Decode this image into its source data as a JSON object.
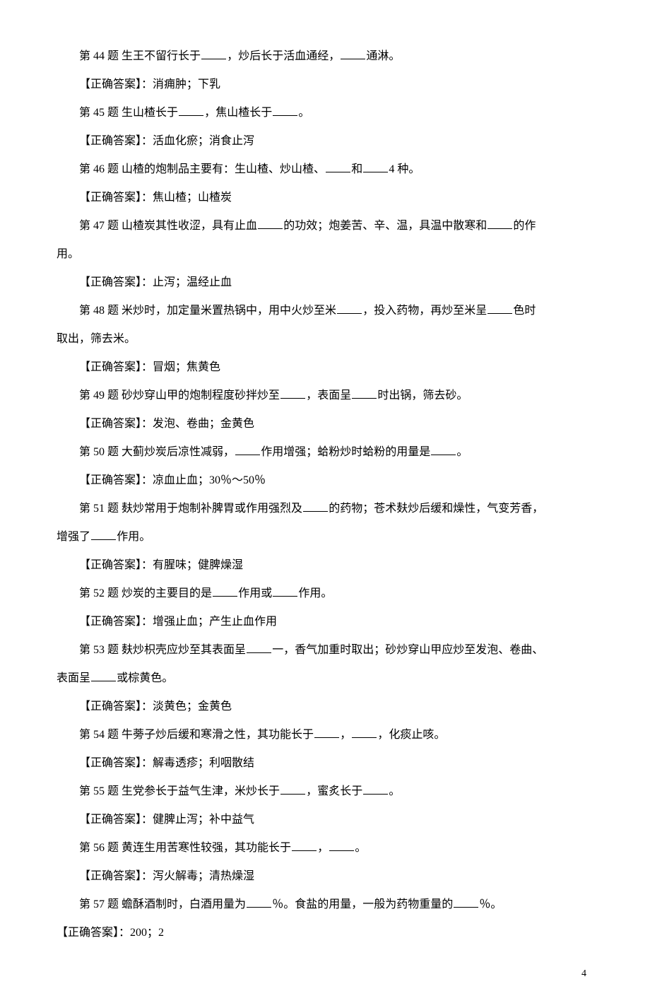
{
  "page_number": "4",
  "answer_label": "【正确答案】：",
  "items": [
    {
      "q_prefix": "第 44 题 生王不留行长于",
      "q_mid1": "，炒后长于活血通经，",
      "q_suffix": "通淋。",
      "a": "消痈肿；下乳"
    },
    {
      "q_prefix": "第 45 题 生山楂长于",
      "q_mid1": "，焦山楂长于",
      "q_suffix": "。",
      "a": "活血化瘀；消食止泻"
    },
    {
      "q_prefix": "第 46 题 山楂的炮制品主要有：生山楂、炒山楂、",
      "q_mid1": "和",
      "q_suffix": "4 种。",
      "a": "焦山楂；山楂炭"
    },
    {
      "q_prefix": "第 47 题 山楂炭其性收涩，具有止血",
      "q_mid1": "的功效；炮姜苦、辛、温，具温中散寒和",
      "q_suffix": "的作",
      "q_line2": "用。",
      "a": "止泻；温经止血"
    },
    {
      "q_prefix": "第 48 题 米炒时，加定量米置热锅中，用中火炒至米",
      "q_mid1": "，投入药物，再炒至米呈",
      "q_suffix": "色时",
      "q_line2": "取出，筛去米。",
      "a": "冒烟；焦黄色"
    },
    {
      "q_prefix": "第 49 题 砂炒穿山甲的炮制程度砂拌炒至",
      "q_mid1": "，表面呈",
      "q_suffix": "时出锅，筛去砂。",
      "a": "发泡、卷曲；金黄色"
    },
    {
      "q_prefix": "第 50 题 大蓟炒炭后凉性减弱，",
      "q_mid1": "作用增强；蛤粉炒时蛤粉的用量是",
      "q_suffix": "。",
      "a": "凉血止血；30％～50％"
    },
    {
      "q_prefix": "第 51 题 麸炒常用于炮制补脾胃或作用强烈及",
      "q_mid1": "的药物；苍术麸炒后缓和燥性，气变芳香，",
      "q_line2_prefix": "增强了",
      "q_line2_suffix": "作用。",
      "a": "有腥味；健脾燥湿"
    },
    {
      "q_prefix": "第 52 题 炒炭的主要目的是",
      "q_mid1": "作用或",
      "q_suffix": "作用。",
      "a": "增强止血；产生止血作用"
    },
    {
      "q_prefix": "第 53 题 麸炒枳壳应炒至其表面呈",
      "q_mid1": "一，香气加重时取出；砂炒穿山甲应炒至发泡、卷曲、",
      "q_line2_prefix": "表面呈",
      "q_line2_suffix": "或棕黄色。",
      "a": "淡黄色；金黄色"
    },
    {
      "q_prefix": "第 54 题 牛蒡子炒后缓和寒滑之性，其功能长于",
      "q_mid1": "，",
      "q_suffix": "，化痰止咳。",
      "a": "解毒透疹；利咽散结"
    },
    {
      "q_prefix": "第 55 题 生党参长于益气生津，米炒长于",
      "q_mid1": "，蜜炙长于",
      "q_suffix": "。",
      "a": "健脾止泻；补中益气"
    },
    {
      "q_prefix": "第 56 题 黄连生用苦寒性较强，其功能长于",
      "q_mid1": "，",
      "q_suffix": "。",
      "a": "泻火解毒；清热燥湿"
    },
    {
      "q_prefix": "第 57 题 蟾酥酒制时，白酒用量为",
      "q_mid1": "％。食盐的用量，一般为药物重量的",
      "q_suffix": "％。",
      "a": "200；2",
      "answer_no_indent": true
    }
  ]
}
